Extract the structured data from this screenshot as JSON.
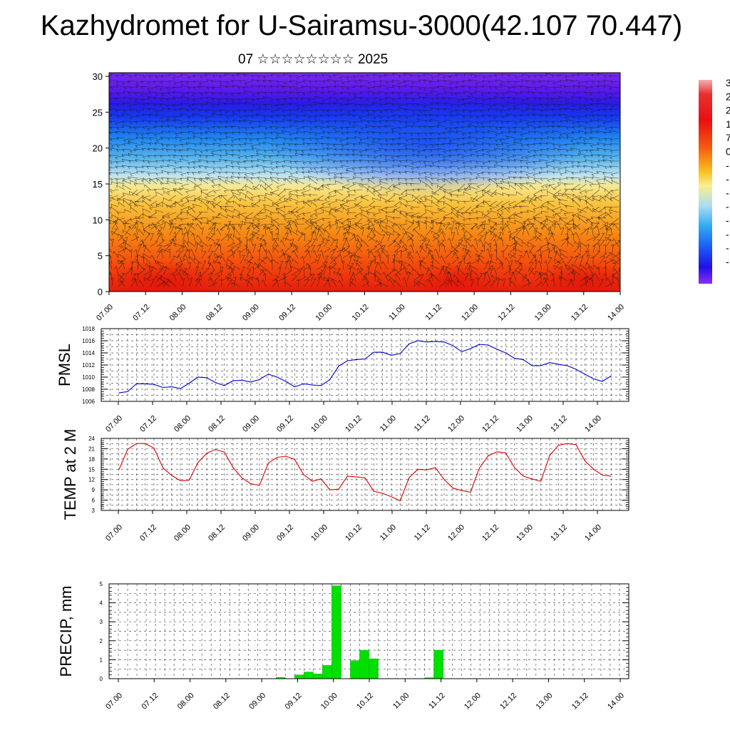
{
  "title": "Kazhydromet for U-Sairamsu-3000(42.107 70.447)",
  "subtitle": "07 ☆☆☆☆☆☆☆☆ 2025",
  "colors": {
    "pmsl_line": "#0000cc",
    "temp_line": "#dd0000",
    "precip_bar": "#00e000",
    "precip_bar_edge": "#00b000"
  },
  "colorbar": {
    "labels": [
      "3",
      "2",
      "2",
      "1",
      "7",
      "0",
      "-",
      "-",
      "-",
      "-",
      "-",
      "-",
      "-",
      "-"
    ]
  },
  "chart_data": [
    {
      "id": "cross-section",
      "type": "heatmap",
      "title": "",
      "xlabel": "",
      "ylabel": "",
      "x_ticks": [
        "07.00",
        "07.12",
        "08.00",
        "08.12",
        "09.00",
        "09.12",
        "10.00",
        "10.12",
        "11.00",
        "11.12",
        "12.00",
        "12.12",
        "13.00",
        "13.12",
        "14.00"
      ],
      "y_ticks": [
        0,
        5,
        10,
        15,
        20,
        25,
        30
      ],
      "ylim": [
        0,
        30.5
      ],
      "notes": "filled temperature colour field with wind barbs overlaid"
    },
    {
      "id": "pmsl",
      "type": "line",
      "ylabel": "PMSL",
      "ylim": [
        1006,
        1018
      ],
      "y_ticks": [
        1006,
        1008,
        1010,
        1012,
        1014,
        1016,
        1018
      ],
      "x_ticks": [
        "07.00",
        "07.12",
        "08.00",
        "08.12",
        "09.00",
        "09.12",
        "10.00",
        "10.12",
        "11.00",
        "11.12",
        "12.00",
        "12.12",
        "13.00",
        "13.12",
        "14.00"
      ],
      "x_hours_step": 3,
      "grid": true,
      "series": [
        {
          "values": [
            1007.4,
            1007.6,
            1008.9,
            1008.9,
            1008.8,
            1008.3,
            1008.4,
            1008.1,
            1009.0,
            1010.0,
            1009.9,
            1009.1,
            1008.6,
            1009.4,
            1009.5,
            1009.2,
            1009.6,
            1010.5,
            1010.0,
            1009.3,
            1008.4,
            1008.9,
            1008.7,
            1008.6,
            1009.6,
            1011.8,
            1012.7,
            1012.9,
            1013.0,
            1014.1,
            1014.1,
            1013.6,
            1013.9,
            1015.5,
            1016.0,
            1015.8,
            1015.9,
            1015.8,
            1015.2,
            1014.2,
            1014.7,
            1015.4,
            1015.3,
            1014.6,
            1014.0,
            1013.1,
            1012.9,
            1011.9,
            1011.9,
            1012.4,
            1012.1,
            1011.9,
            1011.3,
            1010.5,
            1009.7,
            1009.3,
            1010.2
          ]
        }
      ]
    },
    {
      "id": "temp2m",
      "type": "line",
      "ylabel": "TEMP at 2 M",
      "ylim": [
        3,
        24
      ],
      "y_ticks": [
        3,
        6,
        9,
        12,
        15,
        18,
        21,
        24
      ],
      "x_ticks": [
        "07.00",
        "07.12",
        "08.00",
        "08.12",
        "09.00",
        "09.12",
        "10.00",
        "10.12",
        "11.00",
        "11.12",
        "12.00",
        "12.12",
        "13.00",
        "13.12",
        "14.00"
      ],
      "x_hours_step": 3,
      "grid": true,
      "series": [
        {
          "values": [
            14.8,
            20.8,
            22.5,
            22.5,
            21.2,
            15.5,
            13.2,
            11.7,
            11.8,
            17.0,
            19.7,
            20.8,
            20.0,
            15.5,
            12.5,
            10.8,
            10.3,
            16.8,
            18.5,
            18.8,
            17.9,
            13.5,
            11.5,
            12.2,
            9.0,
            9.2,
            13.0,
            12.8,
            12.5,
            8.6,
            8.0,
            7.0,
            5.8,
            12.5,
            15.0,
            14.8,
            15.5,
            12.0,
            9.5,
            8.8,
            8.3,
            15.3,
            18.9,
            20.1,
            19.8,
            15.5,
            13.0,
            12.2,
            11.5,
            19.0,
            22.0,
            22.5,
            22.2,
            17.5,
            15.0,
            13.3,
            13.0
          ]
        }
      ]
    },
    {
      "id": "precip",
      "type": "bar",
      "ylabel": "PRECIP, mm",
      "ylim": [
        0,
        5.0
      ],
      "y_ticks": [
        "0.0",
        "1.0",
        "2.0",
        "3.0",
        "4.0",
        "5.0"
      ],
      "x_ticks": [
        "07.00",
        "07.12",
        "08.00",
        "08.12",
        "09.00",
        "09.12",
        "10.00",
        "10.12",
        "11.00",
        "11.12",
        "12.00",
        "12.12",
        "13.00",
        "13.12",
        "14.00"
      ],
      "bar_hours": 3,
      "grid": true,
      "series": [
        {
          "values": [
            0,
            0,
            0,
            0,
            0,
            0,
            0,
            0,
            0,
            0,
            0,
            0,
            0,
            0,
            0,
            0,
            0,
            0,
            0.06,
            0,
            0.2,
            0.35,
            0.25,
            0.7,
            4.9,
            0,
            0.95,
            1.5,
            1.05,
            0,
            0,
            0,
            0,
            0,
            0.05,
            1.5,
            0,
            0,
            0,
            0,
            0,
            0,
            0,
            0,
            0,
            0,
            0,
            0,
            0,
            0,
            0,
            0,
            0,
            0,
            0,
            0
          ]
        }
      ]
    }
  ]
}
